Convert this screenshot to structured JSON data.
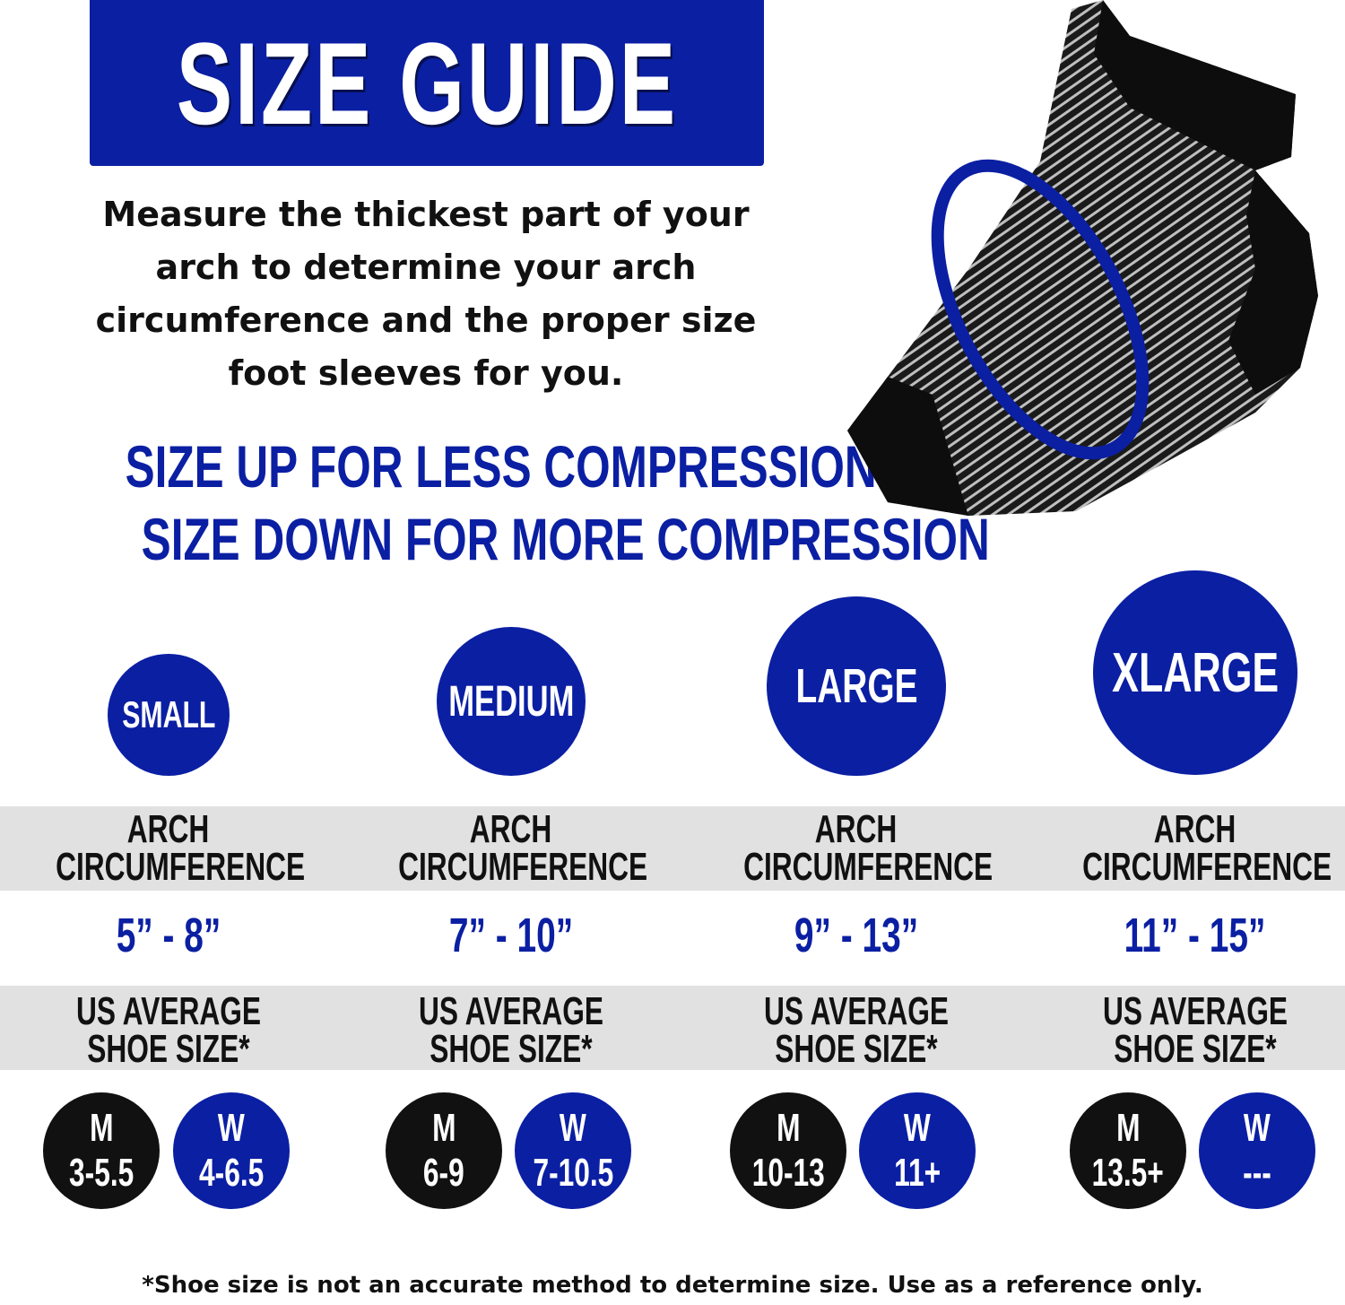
{
  "title": "SIZE GUIDE",
  "intro_lines": [
    "Measure the thickest part of your",
    "arch to determine your arch",
    "circumference and the proper size",
    "foot sleeves for you."
  ],
  "tagline": [
    "SIZE UP FOR LESS COMPRESSION",
    "SIZE DOWN FOR MORE COMPRESSION"
  ],
  "colors": {
    "brand_blue": "#0b1fa3",
    "black": "#111111",
    "band_gray": "#e1e1e1"
  },
  "product_image": "foot-sleeve-with-measuring-ring",
  "sizes": [
    {
      "label": "SMALL",
      "arch_header": [
        "ARCH",
        "CIRCUMFERENCE"
      ],
      "range": "5” -  8”",
      "shoe_header": [
        "US AVERAGE",
        "SHOE SIZE*"
      ],
      "men": {
        "letter": "M",
        "size": "3-5.5"
      },
      "women": {
        "letter": "W",
        "size": "4-6.5"
      }
    },
    {
      "label": "MEDIUM",
      "arch_header": [
        "ARCH",
        "CIRCUMFERENCE"
      ],
      "range": "7” - 10”",
      "shoe_header": [
        "US AVERAGE",
        "SHOE SIZE*"
      ],
      "men": {
        "letter": "M",
        "size": "6-9"
      },
      "women": {
        "letter": "W",
        "size": "7-10.5"
      }
    },
    {
      "label": "LARGE",
      "arch_header": [
        "ARCH",
        "CIRCUMFERENCE"
      ],
      "range": "9” -  13”",
      "shoe_header": [
        "US AVERAGE",
        "SHOE SIZE*"
      ],
      "men": {
        "letter": "M",
        "size": "10-13"
      },
      "women": {
        "letter": "W",
        "size": "11+"
      }
    },
    {
      "label": "XLARGE",
      "arch_header": [
        "ARCH",
        "CIRCUMFERENCE"
      ],
      "range": "11” - 15”",
      "shoe_header": [
        "US AVERAGE",
        "SHOE SIZE*"
      ],
      "men": {
        "letter": "M",
        "size": "13.5+"
      },
      "women": {
        "letter": "W",
        "size": "---"
      }
    }
  ],
  "footnote": "*Shoe size is not an accurate method to determine size. Use as a reference only."
}
